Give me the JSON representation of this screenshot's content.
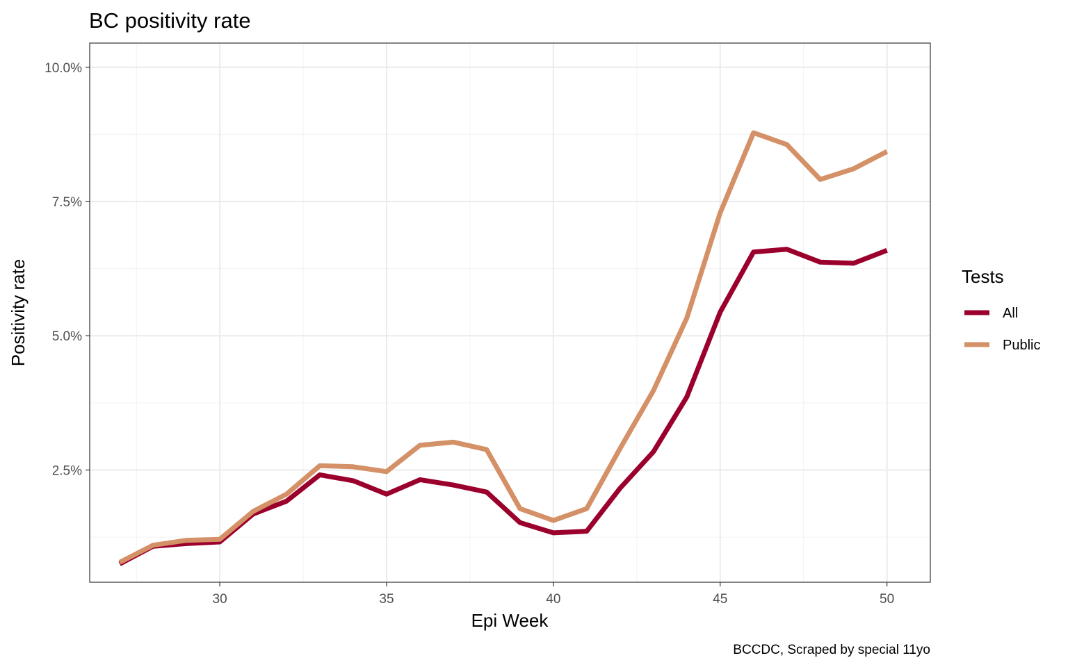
{
  "chart_data": {
    "type": "line",
    "title": "BC positivity rate",
    "xlabel": "Epi Week",
    "ylabel": "Positivity rate",
    "caption": "BCCDC, Scraped by special 11yo",
    "xlim": [
      26.1,
      51.3
    ],
    "ylim": [
      0.41,
      10.45
    ],
    "x_ticks": [
      30,
      35,
      40,
      45,
      50
    ],
    "x_tick_labels": [
      "30",
      "35",
      "40",
      "45",
      "50"
    ],
    "x_minor_ticks": [
      27.5,
      32.5,
      37.5,
      42.5,
      47.5
    ],
    "y_ticks": [
      2.5,
      5.0,
      7.5,
      10.0
    ],
    "y_tick_labels": [
      "2.5%",
      "5.0%",
      "7.5%",
      "10.0%"
    ],
    "y_minor_ticks": [
      1.25,
      3.75,
      6.25,
      8.75
    ],
    "grid": true,
    "legend": {
      "title": "Tests",
      "position": "right"
    },
    "x": [
      27,
      28,
      29,
      30,
      31,
      32,
      33,
      34,
      35,
      36,
      37,
      38,
      39,
      40,
      41,
      42,
      43,
      44,
      45,
      46,
      47,
      48,
      49,
      50
    ],
    "series": [
      {
        "name": "All",
        "color": "#9b002d",
        "values": [
          0.75,
          1.08,
          1.13,
          1.16,
          1.68,
          1.92,
          2.41,
          2.3,
          2.05,
          2.32,
          2.22,
          2.09,
          1.52,
          1.33,
          1.36,
          2.16,
          2.84,
          3.86,
          5.44,
          6.56,
          6.61,
          6.37,
          6.35,
          6.59
        ]
      },
      {
        "name": "Public",
        "color": "#d49066",
        "values": [
          0.78,
          1.1,
          1.19,
          1.21,
          1.73,
          2.05,
          2.58,
          2.56,
          2.47,
          2.96,
          3.02,
          2.88,
          1.78,
          1.56,
          1.78,
          2.9,
          3.98,
          5.33,
          7.29,
          8.78,
          8.56,
          7.91,
          8.11,
          8.43
        ]
      }
    ]
  }
}
